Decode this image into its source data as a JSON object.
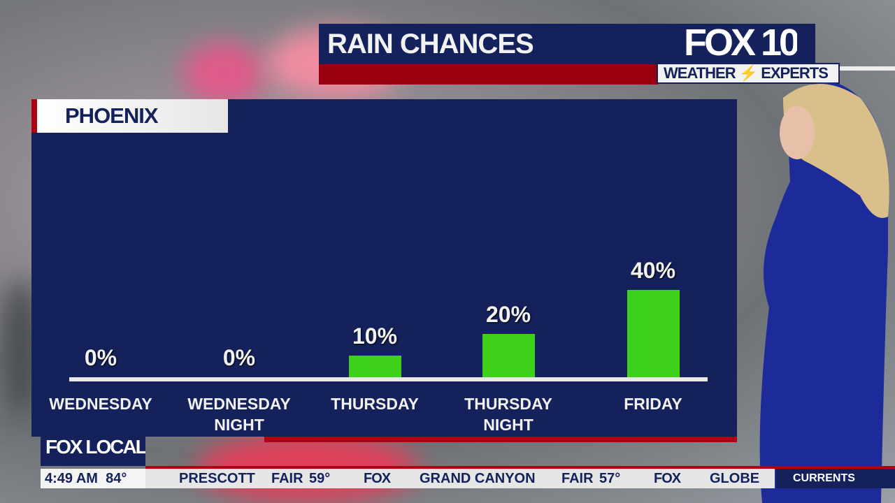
{
  "header": {
    "title": "RAIN CHANCES",
    "logo": "FOX 10",
    "logo_sub": "WEATHER ⚡ EXPERTS"
  },
  "panel": {
    "city": "PHOENIX"
  },
  "chart_data": {
    "type": "bar",
    "categories": [
      [
        "WEDNESDAY",
        ""
      ],
      [
        "WEDNESDAY",
        "NIGHT"
      ],
      [
        "THURSDAY",
        ""
      ],
      [
        "THURSDAY",
        "NIGHT"
      ],
      [
        "FRIDAY",
        ""
      ]
    ],
    "values": [
      0,
      0,
      10,
      20,
      40
    ],
    "data_labels": [
      "0%",
      "0%",
      "10%",
      "20%",
      "40%"
    ],
    "ylim": [
      0,
      40
    ],
    "bar_color": "#3ed11c",
    "grid": false
  },
  "footer": {
    "station_logo": "FOX LOCAL",
    "time": "4:49 AM",
    "temp": "84°",
    "ticker": [
      "PRESCOTT",
      "FAIR",
      "59°",
      "FOX",
      "GRAND CANYON",
      "FAIR",
      "57°",
      "FOX",
      "GLOBE"
    ],
    "currents": "CURRENTS"
  },
  "colors": {
    "navy": "#14215a",
    "red": "#9a0010",
    "green": "#3ed11c"
  }
}
